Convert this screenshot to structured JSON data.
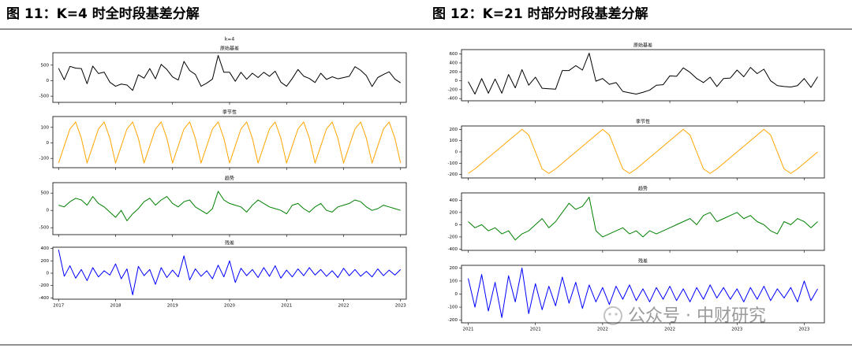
{
  "chart_data": [
    {
      "type": "line",
      "caption": "图 11：K=4 时全时段基差分解",
      "suptitle": "k=4",
      "x": [
        2017,
        2017.1,
        2017.2,
        2017.3,
        2017.4,
        2017.5,
        2017.6,
        2017.7,
        2017.8,
        2017.9,
        2018,
        2018.1,
        2018.2,
        2018.3,
        2018.4,
        2018.5,
        2018.6,
        2018.7,
        2018.8,
        2018.9,
        2019,
        2019.1,
        2019.2,
        2019.3,
        2019.4,
        2019.5,
        2019.6,
        2019.7,
        2019.8,
        2019.9,
        2020,
        2020.1,
        2020.2,
        2020.3,
        2020.4,
        2020.5,
        2020.6,
        2020.7,
        2020.8,
        2020.9,
        2021,
        2021.1,
        2021.2,
        2021.3,
        2021.4,
        2021.5,
        2021.6,
        2021.7,
        2021.8,
        2021.9,
        2022,
        2022.1,
        2022.2,
        2022.3,
        2022.4,
        2022.5,
        2022.6,
        2022.7,
        2022.8,
        2022.9,
        2023
      ],
      "xlim": [
        2016.9,
        2023.1
      ],
      "xticks": [
        2017,
        2018,
        2019,
        2020,
        2021,
        2022,
        2023
      ],
      "panels": [
        {
          "title": "原始基差",
          "ylim": [
            -700,
            900
          ],
          "yticks": [
            -500,
            0,
            500
          ],
          "series": [
            {
              "color": "#000000",
              "values": [
                400,
                30,
                460,
                405,
                390,
                -100,
                470,
                230,
                275,
                -50,
                -180,
                -110,
                -140,
                -315,
                190,
                80,
                390,
                60,
                525,
                360,
                120,
                20,
                620,
                325,
                200,
                -180,
                -80,
                50,
                815,
                270,
                270,
                -20,
                270,
                45,
                240,
                100,
                270,
                140,
                305,
                -50,
                -180,
                70,
                360,
                145,
                70,
                -60,
                240,
                40,
                125,
                60,
                100,
                140,
                450,
                335,
                160,
                -190,
                100,
                200,
                285,
                50,
                -70
              ]
            }
          ]
        },
        {
          "title": "季节性",
          "ylim": [
            -160,
            170
          ],
          "yticks": [
            -100,
            0,
            100
          ],
          "series": [
            {
              "color": "#ffa500",
              "values": [
                -130,
                -20,
                90,
                135,
                30,
                -130,
                -20,
                90,
                135,
                30,
                -130,
                -20,
                90,
                135,
                30,
                -130,
                -20,
                90,
                135,
                30,
                -130,
                -20,
                90,
                135,
                30,
                -130,
                -20,
                90,
                135,
                30,
                -130,
                -20,
                90,
                135,
                30,
                -130,
                -20,
                90,
                135,
                30,
                -130,
                -20,
                90,
                135,
                30,
                -130,
                -20,
                90,
                135,
                30,
                -130,
                -20,
                90,
                135,
                30,
                -130,
                -20,
                90,
                135,
                30,
                -130
              ]
            }
          ]
        },
        {
          "title": "趋势",
          "ylim": [
            -700,
            800
          ],
          "yticks": [
            -500,
            0,
            500
          ],
          "series": [
            {
              "color": "#008000",
              "values": [
                150,
                100,
                250,
                350,
                300,
                150,
                400,
                200,
                100,
                -50,
                -200,
                0,
                -300,
                -100,
                50,
                250,
                350,
                150,
                300,
                400,
                200,
                100,
                250,
                300,
                100,
                0,
                -100,
                50,
                550,
                300,
                200,
                150,
                100,
                -50,
                150,
                300,
                200,
                100,
                50,
                0,
                -100,
                150,
                200,
                50,
                -50,
                100,
                200,
                0,
                -50,
                100,
                150,
                200,
                300,
                250,
                100,
                0,
                50,
                150,
                100,
                50,
                0
              ]
            }
          ]
        },
        {
          "title": "残差",
          "ylim": [
            -420,
            420
          ],
          "yticks": [
            -400,
            -200,
            0,
            200,
            400
          ],
          "series": [
            {
              "color": "#0000ff",
              "values": [
                380,
                -50,
                120,
                -80,
                60,
                -120,
                90,
                -60,
                40,
                -30,
                150,
                -90,
                70,
                -350,
                110,
                -40,
                60,
                -180,
                90,
                -70,
                50,
                -60,
                280,
                -110,
                70,
                -50,
                40,
                -90,
                130,
                -60,
                200,
                -150,
                80,
                -40,
                60,
                -70,
                90,
                -50,
                120,
                -80,
                50,
                -60,
                70,
                -40,
                90,
                -30,
                60,
                -50,
                40,
                -70,
                80,
                -40,
                60,
                -50,
                30,
                -60,
                70,
                -40,
                50,
                -30,
                60
              ]
            }
          ]
        }
      ]
    },
    {
      "type": "line",
      "caption": "图 12：K=21 时部分时段基差分解",
      "x": [
        2021,
        2021.05,
        2021.1,
        2021.15,
        2021.2,
        2021.25,
        2021.3,
        2021.35,
        2021.4,
        2021.45,
        2021.5,
        2021.55,
        2021.6,
        2021.65,
        2021.7,
        2021.75,
        2021.8,
        2021.85,
        2021.9,
        2021.95,
        2022,
        2022.05,
        2022.1,
        2022.15,
        2022.2,
        2022.25,
        2022.3,
        2022.35,
        2022.4,
        2022.45,
        2022.5,
        2022.55,
        2022.6,
        2022.65,
        2022.7,
        2022.75,
        2022.8,
        2022.85,
        2022.9,
        2022.95,
        2023,
        2023.05,
        2023.1,
        2023.15,
        2023.2,
        2023.25,
        2023.3,
        2023.35,
        2023.4,
        2023.45,
        2023.5,
        2023.55,
        2023.6
      ],
      "xlim": [
        2020.95,
        2023.65
      ],
      "xticks": [
        {
          "value": 2021,
          "label": "2021"
        },
        {
          "value": 2021.5,
          "label": "2021"
        },
        {
          "value": 2022,
          "label": "2022"
        },
        {
          "value": 2022.5,
          "label": "2022"
        },
        {
          "value": 2023,
          "label": "2023"
        },
        {
          "value": 2023.5,
          "label": "2023"
        }
      ],
      "panels": [
        {
          "title": "原始基差",
          "ylim": [
            -450,
            700
          ],
          "yticks": [
            -400,
            -200,
            0,
            200,
            400,
            600
          ],
          "series": [
            {
              "color": "#000000",
              "values": [
                -20,
                -300,
                50,
                -280,
                40,
                -280,
                140,
                -160,
                250,
                -100,
                80,
                -170,
                -180,
                -190,
                230,
                230,
                340,
                240,
                620,
                -10,
                50,
                -80,
                -40,
                -240,
                -270,
                -300,
                -260,
                -210,
                -100,
                -90,
                110,
                100,
                290,
                190,
                50,
                -40,
                80,
                -130,
                50,
                60,
                240,
                90,
                300,
                160,
                260,
                0,
                -110,
                -130,
                -140,
                -110,
                50,
                -150,
                90
              ]
            }
          ]
        },
        {
          "title": "季节性",
          "ylim": [
            -230,
            230
          ],
          "yticks": [
            -200,
            -100,
            0,
            100,
            200
          ],
          "series": [
            {
              "color": "#ffa500",
              "values": [
                -190,
                -150,
                -100,
                -50,
                0,
                50,
                100,
                150,
                200,
                150,
                0,
                -150,
                -190,
                -150,
                -100,
                -50,
                0,
                50,
                100,
                150,
                200,
                150,
                0,
                -150,
                -190,
                -150,
                -100,
                -50,
                0,
                50,
                100,
                150,
                200,
                150,
                0,
                -150,
                -190,
                -150,
                -100,
                -50,
                0,
                50,
                100,
                150,
                200,
                150,
                0,
                -150,
                -190,
                -150,
                -100,
                -50,
                0
              ]
            }
          ]
        },
        {
          "title": "趋势",
          "ylim": [
            -420,
            520
          ],
          "yticks": [
            -400,
            -200,
            0,
            200,
            400
          ],
          "series": [
            {
              "color": "#008000",
              "values": [
                50,
                -50,
                0,
                -100,
                -50,
                -150,
                -100,
                -250,
                -150,
                -100,
                0,
                100,
                -50,
                50,
                200,
                350,
                250,
                300,
                450,
                -100,
                -200,
                -150,
                -100,
                -50,
                -150,
                -100,
                -200,
                -100,
                -150,
                -100,
                -50,
                0,
                50,
                100,
                0,
                150,
                200,
                50,
                100,
                150,
                200,
                100,
                150,
                50,
                0,
                -100,
                -150,
                50,
                0,
                100,
                50,
                -50,
                50
              ]
            }
          ]
        },
        {
          "title": "残差",
          "ylim": [
            -220,
            220
          ],
          "yticks": [
            -200,
            -100,
            0,
            100,
            200
          ],
          "series": [
            {
              "color": "#0000ff",
              "values": [
                120,
                -100,
                150,
                -130,
                90,
                -180,
                140,
                -60,
                200,
                -150,
                80,
                -120,
                60,
                -90,
                130,
                -70,
                90,
                -110,
                70,
                -60,
                50,
                -80,
                60,
                -40,
                70,
                -50,
                40,
                -60,
                50,
                -40,
                60,
                -50,
                40,
                -60,
                50,
                -40,
                70,
                -30,
                50,
                -40,
                40,
                -60,
                50,
                -40,
                60,
                -50,
                40,
                -30,
                50,
                -60,
                100,
                -50,
                40
              ]
            }
          ]
        }
      ]
    }
  ],
  "watermark": "公众号 · 中财研究"
}
